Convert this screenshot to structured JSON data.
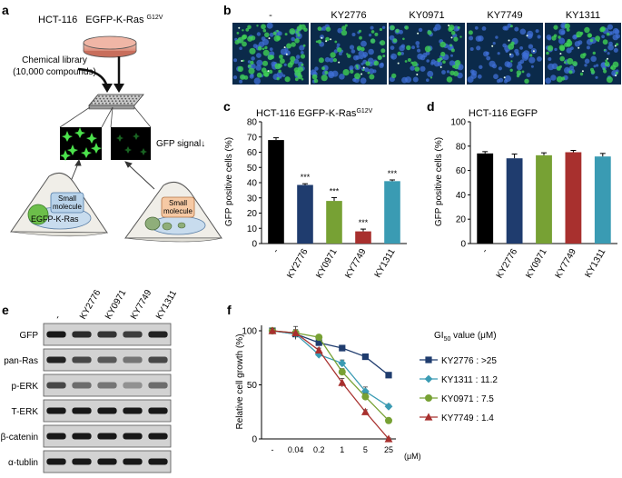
{
  "panels": {
    "a": {
      "label": "a",
      "cell_line": "HCT-116",
      "construct": "EGFP-K-Ras",
      "construct_sup": "G12V",
      "library_line1": "Chemical library",
      "library_line2": "(10,000 compounds)",
      "gfp_signal": "GFP signal↓",
      "small_line1": "Small",
      "small_line2": "molecule",
      "egfp_kras": "EGFP-K-Ras",
      "colors": {
        "cell_fill": "#f0eee8",
        "gfp_green": "#5cd65c",
        "blue_box": "#b9d3ea",
        "orange_box": "#f6c9a4"
      }
    },
    "b": {
      "label": "b",
      "columns": [
        "-",
        "KY2776",
        "KY0971",
        "KY7749",
        "KY1311"
      ],
      "colors": {
        "background": "#0b2a4a",
        "green": "#3fcf55",
        "blue": "#3f6fd6"
      }
    },
    "c": {
      "label": "c",
      "title": "HCT-116  EGFP-K-Ras",
      "title_sup": "G12V",
      "ylabel": "GFP positive cells (%)",
      "sig": "***"
    },
    "d": {
      "label": "d",
      "title": "HCT-116  EGFP",
      "ylabel": "GFP positive cells (%)"
    },
    "e": {
      "label": "e",
      "lanes": [
        "-",
        "KY2776",
        "KY0971",
        "KY7749",
        "KY1311"
      ],
      "rows": [
        {
          "name": "GFP",
          "intensities": [
            0.95,
            0.85,
            0.8,
            0.75,
            0.9
          ]
        },
        {
          "name": "pan-Ras",
          "intensities": [
            0.9,
            0.7,
            0.6,
            0.45,
            0.7
          ]
        },
        {
          "name": "p-ERK",
          "intensities": [
            0.7,
            0.5,
            0.45,
            0.3,
            0.5
          ]
        },
        {
          "name": "T-ERK",
          "intensities": [
            0.95,
            0.95,
            0.95,
            0.95,
            0.95
          ]
        },
        {
          "name": "β-catenin",
          "intensities": [
            0.95,
            0.95,
            0.95,
            0.95,
            0.95
          ]
        },
        {
          "name": "α-tublin",
          "intensities": [
            0.95,
            0.95,
            0.95,
            0.95,
            0.95
          ]
        }
      ]
    },
    "f": {
      "label": "f",
      "ylabel": "Relative cell growth (%)",
      "unit": "(μM)",
      "legend_title_pre": "GI",
      "legend_title_sub": "50",
      "legend_title_post": " value (μM)"
    }
  },
  "chart_data": [
    {
      "type": "bar",
      "panel": "c",
      "title": "HCT-116  EGFP-K-RasG12V",
      "ylabel": "GFP positive cells (%)",
      "categories": [
        "-",
        "KY2776",
        "KY0971",
        "KY7749",
        "KY1311"
      ],
      "values": [
        68,
        38.5,
        28,
        8,
        41
      ],
      "errors": [
        1.5,
        0.8,
        2.2,
        1.5,
        0.8
      ],
      "significance": [
        "",
        "***",
        "***",
        "***",
        "***"
      ],
      "colors": [
        "#000000",
        "#1f3c6e",
        "#77a134",
        "#a8302e",
        "#3a9bb3"
      ],
      "ylim": [
        0,
        80
      ],
      "yticks": [
        0,
        10,
        20,
        30,
        40,
        50,
        60,
        70,
        80
      ],
      "grid": false
    },
    {
      "type": "bar",
      "panel": "d",
      "title": "HCT-116  EGFP",
      "ylabel": "GFP positive cells (%)",
      "categories": [
        "-",
        "KY2776",
        "KY0971",
        "KY7749",
        "KY1311"
      ],
      "values": [
        74,
        70,
        72.5,
        75,
        71.5
      ],
      "errors": [
        1.5,
        3.5,
        2,
        1.5,
        2.5
      ],
      "colors": [
        "#000000",
        "#1f3c6e",
        "#77a134",
        "#a8302e",
        "#3a9bb3"
      ],
      "ylim": [
        0,
        100
      ],
      "yticks": [
        0,
        20,
        40,
        60,
        80,
        100
      ],
      "grid": false
    },
    {
      "type": "line",
      "panel": "f",
      "ylabel": "Relative cell growth (%)",
      "categories": [
        "-",
        "0.04",
        "0.2",
        "1",
        "5",
        "25"
      ],
      "x_unit": "(μM)",
      "ylim": [
        0,
        100
      ],
      "yticks": [
        0,
        50,
        100
      ],
      "legend_position": "right",
      "series": [
        {
          "name": "KY2776",
          "gi50": ">25",
          "marker": "square",
          "color": "#1f3c6e",
          "values": [
            100,
            97,
            89,
            84,
            76,
            59
          ],
          "errors": [
            2,
            4,
            2,
            1.5,
            1.5,
            2
          ]
        },
        {
          "name": "KY1311",
          "gi50": "11.2",
          "marker": "diamond",
          "color": "#3a9bb3",
          "values": [
            100,
            97,
            78,
            70,
            44,
            30
          ],
          "errors": [
            2,
            4,
            2,
            3,
            4,
            2
          ]
        },
        {
          "name": "KY0971",
          "gi50": "7.5",
          "marker": "circle",
          "color": "#77a134",
          "values": [
            100,
            98,
            94,
            62,
            39,
            17
          ],
          "errors": [
            2,
            3,
            2,
            3,
            3,
            2
          ]
        },
        {
          "name": "KY7749",
          "gi50": "1.4",
          "marker": "triangle",
          "color": "#a8302e",
          "values": [
            100,
            98,
            82,
            52,
            25,
            0
          ],
          "errors": [
            2,
            6,
            2,
            4,
            2,
            1
          ]
        }
      ]
    }
  ]
}
